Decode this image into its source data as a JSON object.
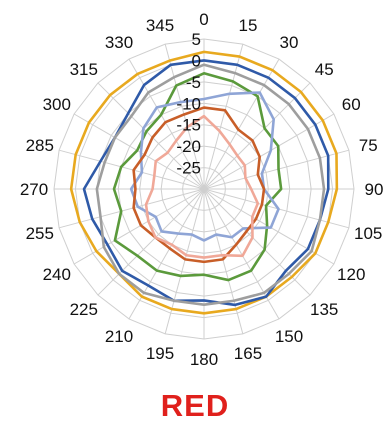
{
  "caption": {
    "text": "RED",
    "color": "#e0201c"
  },
  "chart_data": {
    "type": "radar",
    "angle_ticks": [
      0,
      15,
      30,
      45,
      60,
      75,
      90,
      105,
      120,
      135,
      150,
      165,
      180,
      195,
      210,
      225,
      240,
      255,
      270,
      285,
      300,
      315,
      330,
      345
    ],
    "radial_ticks": [
      5,
      0,
      -5,
      -10,
      -15,
      -20,
      -25
    ],
    "rlim": [
      -30,
      5
    ],
    "grid": true,
    "legend": "none",
    "series": [
      {
        "color": "#e8a91f",
        "values": [
          2,
          2,
          2,
          2,
          2,
          2,
          1,
          0,
          0,
          -1,
          -1,
          -1,
          -1,
          -1,
          -1,
          -2,
          -1,
          0,
          1,
          1,
          1,
          1,
          1,
          1
        ]
      },
      {
        "color": "#2f5aa8",
        "values": [
          0,
          0,
          0,
          0,
          0,
          0,
          -1,
          -2,
          -2,
          -3,
          -1,
          -2,
          -4,
          -3,
          -4,
          -3,
          -4,
          -3,
          -2,
          -5,
          -6,
          -5,
          -2,
          0
        ]
      },
      {
        "color": "#9e9e9e",
        "values": [
          -1,
          -2,
          -2,
          -2,
          -2,
          -2,
          -2,
          -2,
          -1,
          -2,
          -2,
          -3,
          -3,
          -3,
          -2,
          -2,
          -3,
          -5,
          -5,
          -6,
          -6,
          -6,
          -4,
          -3
        ]
      },
      {
        "color": "#5b9a3c",
        "values": [
          -3,
          -4,
          -5,
          -10,
          -10,
          -12,
          -12,
          -15,
          -13,
          -10,
          -8,
          -8,
          -10,
          -9,
          -8,
          -8,
          -6,
          -10,
          -9,
          -10,
          -12,
          -11,
          -10,
          -5
        ]
      },
      {
        "color": "#8fa5d6",
        "values": [
          -9,
          -7,
          -4,
          -7,
          -12,
          -16,
          -16,
          -12,
          -12,
          -17,
          -17,
          -19,
          -18,
          -19,
          -18,
          -16,
          -17,
          -14,
          -13,
          -15,
          -13,
          -10,
          -8,
          -9
        ]
      },
      {
        "color": "#c85e28",
        "values": [
          -11,
          -11,
          -14,
          -14,
          -15,
          -17,
          -16,
          -16,
          -16,
          -16,
          -15,
          -13,
          -13,
          -13,
          -14,
          -14,
          -13,
          -13,
          -14,
          -13,
          -14,
          -13,
          -12,
          -12
        ]
      },
      {
        "color": "#f0a898",
        "values": [
          -13,
          -16,
          -18,
          -19,
          -19,
          -20,
          -19,
          -17,
          -17,
          -14,
          -12,
          -14,
          -14,
          -14,
          -15,
          -14,
          -15,
          -16,
          -18,
          -18,
          -17,
          -18,
          -17,
          -15
        ]
      }
    ]
  }
}
